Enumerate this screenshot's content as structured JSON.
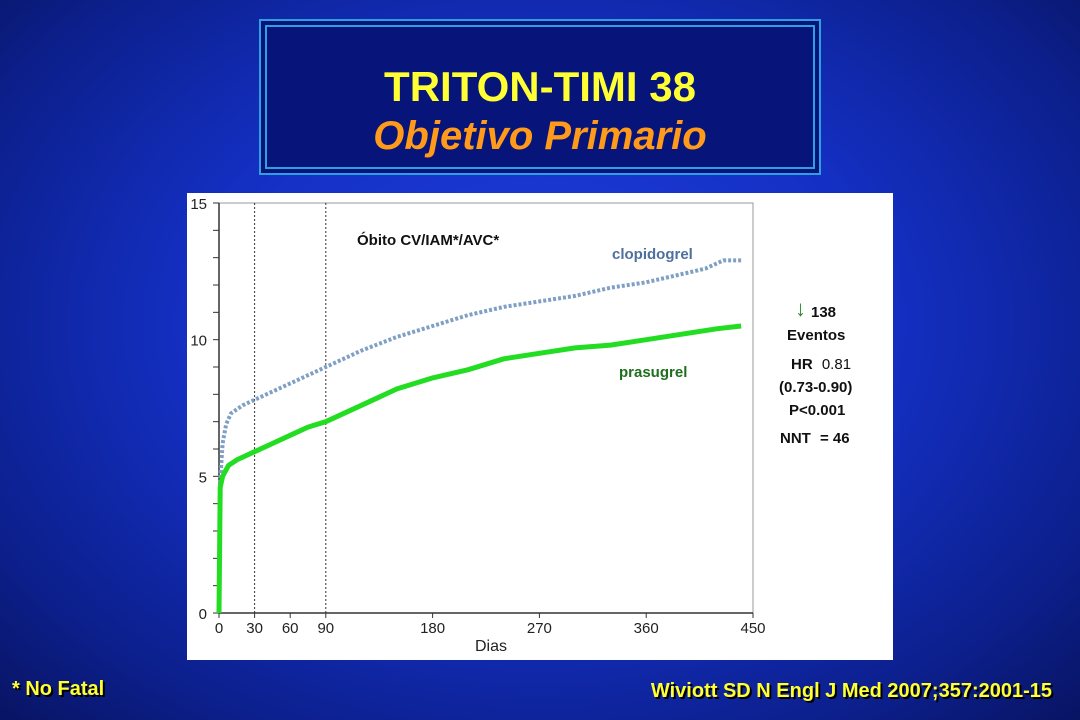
{
  "title": "TRITON-TIMI 38",
  "subtitle": "Objetivo Primario",
  "footnote": "* No Fatal",
  "citation": "Wiviott SD N Engl J Med 2007;357:2001-15",
  "colors": {
    "title": "#ffff33",
    "subtitle": "#ff9a1a",
    "clopidogrel": "#7f9fc4",
    "prasugrel": "#22dd22",
    "annotation_arrow": "#2a8a2a"
  },
  "chart_data": {
    "type": "line",
    "title": "Óbito CV/IAM*/AVC*",
    "xlabel": "Dias",
    "ylabel": "",
    "xlim": [
      0,
      450
    ],
    "ylim": [
      0,
      15
    ],
    "x_ticks": [
      0,
      30,
      60,
      90,
      180,
      270,
      360,
      450
    ],
    "y_ticks": [
      0,
      5,
      10,
      15
    ],
    "reference_lines_x": [
      30,
      90
    ],
    "series": [
      {
        "name": "clopidogrel",
        "style": "dotted",
        "points": [
          [
            0,
            0
          ],
          [
            1,
            4.8
          ],
          [
            3,
            6.2
          ],
          [
            6,
            6.9
          ],
          [
            10,
            7.3
          ],
          [
            20,
            7.6
          ],
          [
            30,
            7.8
          ],
          [
            45,
            8.1
          ],
          [
            60,
            8.4
          ],
          [
            75,
            8.7
          ],
          [
            90,
            9.0
          ],
          [
            120,
            9.6
          ],
          [
            150,
            10.1
          ],
          [
            180,
            10.5
          ],
          [
            210,
            10.9
          ],
          [
            240,
            11.2
          ],
          [
            270,
            11.4
          ],
          [
            300,
            11.6
          ],
          [
            330,
            11.9
          ],
          [
            360,
            12.1
          ],
          [
            390,
            12.4
          ],
          [
            410,
            12.6
          ],
          [
            425,
            12.9
          ],
          [
            440,
            12.9
          ]
        ]
      },
      {
        "name": "prasugrel",
        "style": "solid",
        "points": [
          [
            0,
            0
          ],
          [
            1,
            4.6
          ],
          [
            3,
            5.0
          ],
          [
            8,
            5.4
          ],
          [
            15,
            5.6
          ],
          [
            30,
            5.9
          ],
          [
            45,
            6.2
          ],
          [
            60,
            6.5
          ],
          [
            75,
            6.8
          ],
          [
            90,
            7.0
          ],
          [
            120,
            7.6
          ],
          [
            150,
            8.2
          ],
          [
            180,
            8.6
          ],
          [
            210,
            8.9
          ],
          [
            240,
            9.3
          ],
          [
            270,
            9.5
          ],
          [
            300,
            9.7
          ],
          [
            330,
            9.8
          ],
          [
            360,
            10.0
          ],
          [
            390,
            10.2
          ],
          [
            420,
            10.4
          ],
          [
            440,
            10.5
          ]
        ]
      }
    ],
    "annotations": {
      "arrow": "↓",
      "events_count": "138",
      "events_label": "Eventos",
      "hr_label": "HR",
      "hr_value": "0.81",
      "ci": "(0.73-0.90)",
      "p_value": "P<0.001",
      "nnt_label": "NNT",
      "nnt_value": "= 46"
    }
  }
}
